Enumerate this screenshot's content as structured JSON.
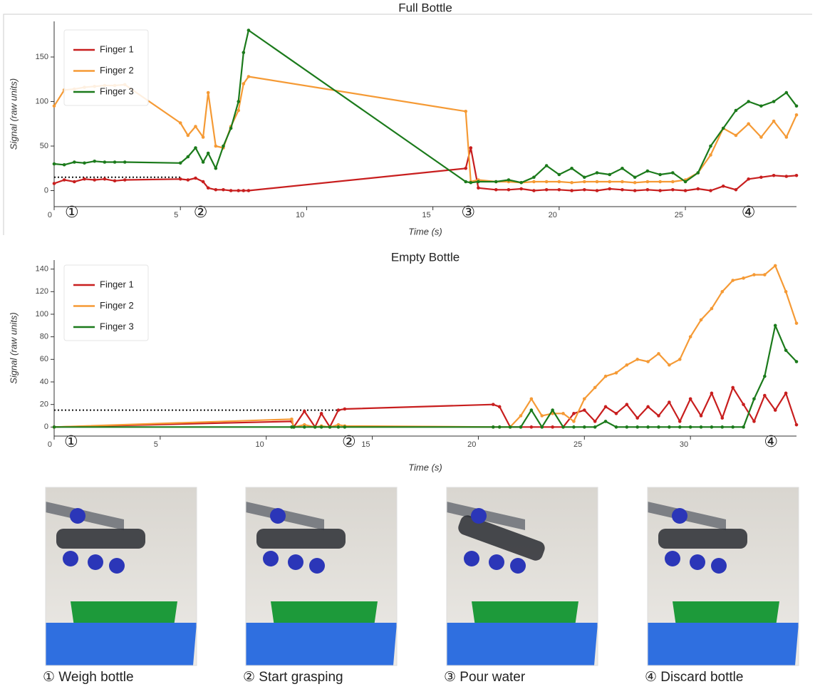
{
  "chart_data": [
    {
      "type": "line",
      "title": "Full Bottle",
      "xlabel": "Time (s)",
      "ylabel": "Signal (raw units)",
      "xlim": [
        0,
        29.4
      ],
      "ylim": [
        -18,
        190
      ],
      "xticks": [
        0,
        5,
        10,
        15,
        20,
        25
      ],
      "yticks": [
        0,
        50,
        100,
        150
      ],
      "legend": "upper left",
      "threshold": 15,
      "threshold_x": [
        0,
        5
      ],
      "annotations": [
        {
          "text": "①",
          "x": 0.7
        },
        {
          "text": "②",
          "x": 5.8
        },
        {
          "text": "③",
          "x": 16.4
        },
        {
          "text": "④",
          "x": 27.5
        }
      ],
      "x": [
        0,
        0.4,
        0.8,
        1.2,
        1.6,
        2.0,
        2.4,
        2.8,
        5.0,
        5.3,
        5.6,
        5.9,
        6.1,
        6.4,
        6.7,
        7.0,
        7.3,
        7.5,
        7.7,
        16.3,
        16.5,
        16.8,
        17.5,
        18,
        18.5,
        19,
        19.5,
        20,
        20.5,
        21,
        21.5,
        22,
        22.5,
        23,
        23.5,
        24,
        24.5,
        25,
        25.5,
        26,
        26.5,
        27,
        27.5,
        28,
        28.5,
        29,
        29.4
      ],
      "series": [
        {
          "name": "Finger 1",
          "color": "#c81e1e",
          "values": [
            8,
            12,
            10,
            13,
            12,
            13,
            11,
            12,
            13,
            12,
            14,
            10,
            3,
            1,
            1,
            0,
            0,
            0,
            0,
            25,
            48,
            3,
            1,
            1,
            2,
            0,
            1,
            1,
            0,
            1,
            0,
            2,
            1,
            0,
            1,
            0,
            1,
            0,
            2,
            0,
            5,
            1,
            13,
            15,
            17,
            16,
            17
          ]
        },
        {
          "name": "Finger 2",
          "color": "#f59a35",
          "values": [
            95,
            113,
            114,
            116,
            117,
            118,
            118,
            119,
            76,
            62,
            72,
            60,
            110,
            50,
            48,
            72,
            90,
            120,
            128,
            89,
            10,
            12,
            10,
            10,
            9,
            10,
            10,
            10,
            9,
            10,
            10,
            10,
            10,
            9,
            10,
            10,
            10,
            12,
            20,
            40,
            70,
            62,
            75,
            60,
            78,
            60,
            85
          ]
        },
        {
          "name": "Finger 3",
          "color": "#1b7a1b",
          "values": [
            30,
            29,
            32,
            31,
            33,
            32,
            32,
            32,
            31,
            38,
            48,
            32,
            42,
            25,
            50,
            70,
            100,
            155,
            180,
            10,
            9,
            10,
            10,
            12,
            9,
            15,
            28,
            18,
            25,
            15,
            20,
            18,
            25,
            15,
            22,
            18,
            20,
            10,
            20,
            50,
            70,
            90,
            100,
            95,
            100,
            110,
            95
          ]
        }
      ]
    },
    {
      "type": "line",
      "title": "Empty Bottle",
      "xlabel": "Time (s)",
      "ylabel": "Signal (raw units)",
      "xlim": [
        0,
        35
      ],
      "ylim": [
        -8,
        148
      ],
      "xticks": [
        0,
        5,
        10,
        15,
        20,
        25,
        30
      ],
      "yticks": [
        0,
        20,
        40,
        60,
        80,
        100,
        120,
        140
      ],
      "legend": "upper left",
      "threshold": 15,
      "threshold_x": [
        0,
        13.5
      ],
      "annotations": [
        {
          "text": "①",
          "x": 0.8
        },
        {
          "text": "②",
          "x": 13.9
        },
        {
          "text": "④",
          "x": 33.8
        }
      ],
      "x": [
        0,
        11.2,
        11.3,
        11.8,
        12.3,
        12.6,
        13.0,
        13.4,
        13.7,
        20.7,
        21.0,
        21.5,
        22,
        22.5,
        23,
        23.5,
        24,
        24.5,
        25,
        25.5,
        26,
        26.5,
        27,
        27.5,
        28,
        28.5,
        29,
        29.5,
        30,
        30.5,
        31,
        31.5,
        32,
        32.5,
        33,
        33.5,
        34,
        34.5,
        35
      ],
      "series": [
        {
          "name": "Finger 1",
          "color": "#c81e1e",
          "values": [
            0,
            5,
            0,
            14,
            0,
            12,
            0,
            15,
            16,
            20,
            18,
            0,
            0,
            0,
            0,
            0,
            0,
            12,
            15,
            5,
            18,
            12,
            20,
            8,
            18,
            10,
            22,
            5,
            25,
            10,
            30,
            8,
            35,
            20,
            5,
            28,
            15,
            30,
            2
          ]
        },
        {
          "name": "Finger 2",
          "color": "#f59a35",
          "values": [
            0,
            7,
            0,
            2,
            0,
            1,
            0,
            2,
            1,
            0,
            0,
            0,
            10,
            25,
            10,
            12,
            12,
            5,
            25,
            35,
            45,
            48,
            55,
            60,
            58,
            65,
            55,
            60,
            80,
            95,
            105,
            120,
            130,
            132,
            135,
            135,
            143,
            120,
            92
          ]
        },
        {
          "name": "Finger 3",
          "color": "#1b7a1b",
          "values": [
            0,
            0,
            0,
            0,
            0,
            0,
            0,
            0,
            0,
            0,
            0,
            0,
            0,
            15,
            0,
            15,
            0,
            0,
            0,
            0,
            5,
            0,
            0,
            0,
            0,
            0,
            0,
            0,
            0,
            0,
            0,
            0,
            0,
            0,
            25,
            45,
            90,
            68,
            58
          ]
        }
      ]
    }
  ],
  "photos": {
    "captions": [
      "① Weigh bottle",
      "② Start grasping",
      "③ Pour water",
      "④ Discard bottle"
    ]
  }
}
